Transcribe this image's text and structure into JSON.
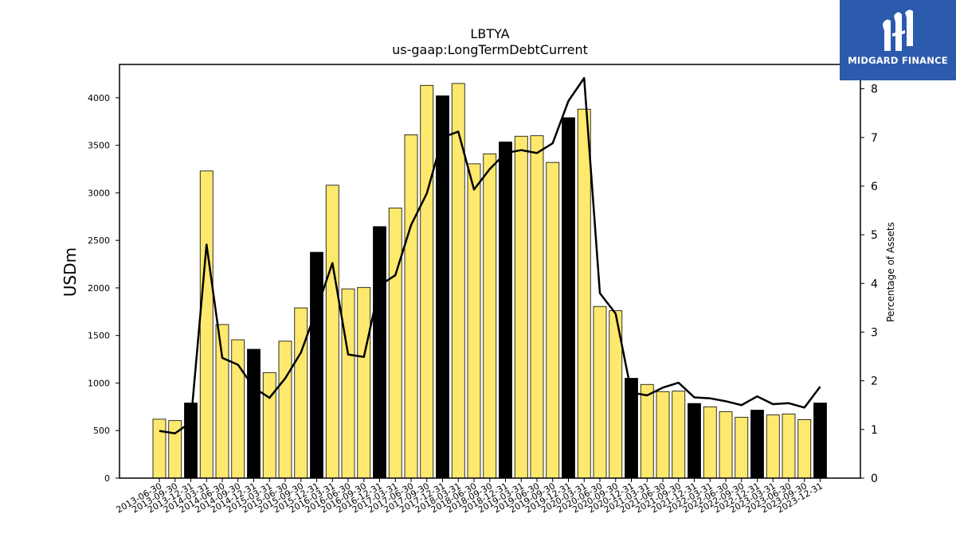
{
  "chart_data": {
    "type": "bar",
    "title": "LBTYA",
    "subtitle": "us-gaap:LongTermDebtCurrent",
    "ylabel": "USDm",
    "ylabel_right": "Percentage of Assets",
    "ylim": [
      0,
      4350
    ],
    "ylim_right": [
      0,
      8.5
    ],
    "yticks": [
      0,
      500,
      1000,
      1500,
      2000,
      2500,
      3000,
      3500,
      4000
    ],
    "yticks_right": [
      0,
      1,
      2,
      3,
      4,
      5,
      6,
      7,
      8
    ],
    "categories": [
      "2013-06-30",
      "2013-09-30",
      "2013-12-31",
      "2014-03-31",
      "2014-06-30",
      "2014-09-30",
      "2014-12-31",
      "2015-03-31",
      "2015-06-30",
      "2015-09-30",
      "2015-12-31",
      "2016-03-31",
      "2016-06-30",
      "2016-09-30",
      "2016-12-31",
      "2017-03-31",
      "2017-06-30",
      "2017-09-30",
      "2017-12-31",
      "2018-03-31",
      "2018-06-30",
      "2018-09-30",
      "2018-12-31",
      "2019-03-31",
      "2019-06-30",
      "2019-09-30",
      "2019-12-31",
      "2020-03-31",
      "2020-06-30",
      "2020-09-30",
      "2020-12-31",
      "2021-03-31",
      "2021-06-30",
      "2021-09-30",
      "2021-12-31",
      "2022-03-31",
      "2022-06-30",
      "2022-09-30",
      "2022-12-31",
      "2023-03-31",
      "2023-06-30",
      "2023-09-30",
      "2023-12-31"
    ],
    "series": [
      {
        "type": "bar",
        "values": [
          620,
          605,
          790,
          3230,
          1615,
          1455,
          1355,
          1110,
          1440,
          1790,
          2375,
          3080,
          1990,
          2005,
          2645,
          2840,
          3610,
          4130,
          4020,
          4150,
          3305,
          3410,
          3535,
          3595,
          3600,
          3320,
          3790,
          3880,
          1805,
          1760,
          1050,
          985,
          910,
          915,
          785,
          750,
          700,
          640,
          715,
          665,
          675,
          615,
          790
        ],
        "highlight_color": "#000000",
        "base_color": "#fde96e",
        "highlight_categories": [
          "2013-12-31",
          "2014-12-31",
          "2015-12-31",
          "2016-12-31",
          "2017-12-31",
          "2018-12-31",
          "2019-12-31",
          "2020-12-31",
          "2021-12-31",
          "2022-12-31",
          "2023-12-31"
        ]
      },
      {
        "type": "line",
        "axis": "right",
        "color": "#000000",
        "values": [
          0.97,
          0.92,
          1.15,
          4.8,
          2.47,
          2.33,
          1.86,
          1.65,
          2.05,
          2.58,
          3.47,
          4.42,
          2.54,
          2.49,
          3.96,
          4.17,
          5.2,
          5.85,
          7.0,
          7.12,
          5.93,
          6.35,
          6.68,
          6.74,
          6.68,
          6.88,
          7.75,
          8.22,
          3.8,
          3.38,
          1.76,
          1.7,
          1.86,
          1.96,
          1.66,
          1.64,
          1.58,
          1.5,
          1.68,
          1.52,
          1.54,
          1.45,
          1.88
        ]
      }
    ],
    "grid": false,
    "legend": "none"
  },
  "branding": {
    "logo_text": "MIDGARD FINANCE",
    "logo_icon": "midgard-logo-icon",
    "logo_bg": "#2c5aad"
  }
}
